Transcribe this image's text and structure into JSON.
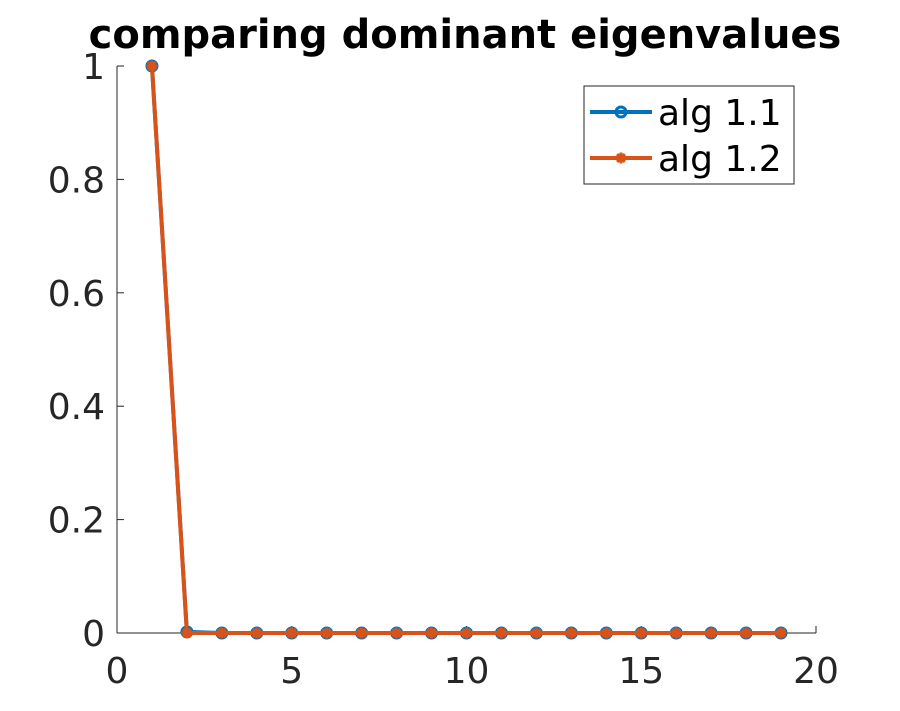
{
  "chart_data": {
    "type": "line",
    "title": "comparing dominant eigenvalues",
    "xlabel": "",
    "ylabel": "",
    "xlim": [
      0,
      20
    ],
    "ylim": [
      0,
      1
    ],
    "xticks": [
      0,
      5,
      10,
      15,
      20
    ],
    "yticks": [
      0,
      0.2,
      0.4,
      0.6,
      0.8,
      1
    ],
    "xtick_labels": [
      "0",
      "5",
      "10",
      "15",
      "20"
    ],
    "ytick_labels": [
      "0",
      "0.2",
      "0.4",
      "0.6",
      "0.8",
      "1"
    ],
    "grid": false,
    "legend_position": "top-right",
    "x": [
      1,
      2,
      3,
      4,
      5,
      6,
      7,
      8,
      9,
      10,
      11,
      12,
      13,
      14,
      15,
      16,
      17,
      18,
      19
    ],
    "series": [
      {
        "name": "alg 1.1",
        "color": "#0072BD",
        "marker": "circle",
        "values": [
          1,
          0.002,
          0,
          0,
          0,
          0,
          0,
          0,
          0,
          0,
          0,
          0,
          0,
          0,
          0,
          0,
          0,
          0,
          0
        ]
      },
      {
        "name": "alg 1.2",
        "color": "#D95319",
        "marker": "star",
        "values": [
          1,
          0,
          0,
          0,
          0,
          0,
          0,
          0,
          0,
          0,
          0,
          0,
          0,
          0,
          0,
          0,
          0,
          0,
          0
        ]
      }
    ]
  }
}
